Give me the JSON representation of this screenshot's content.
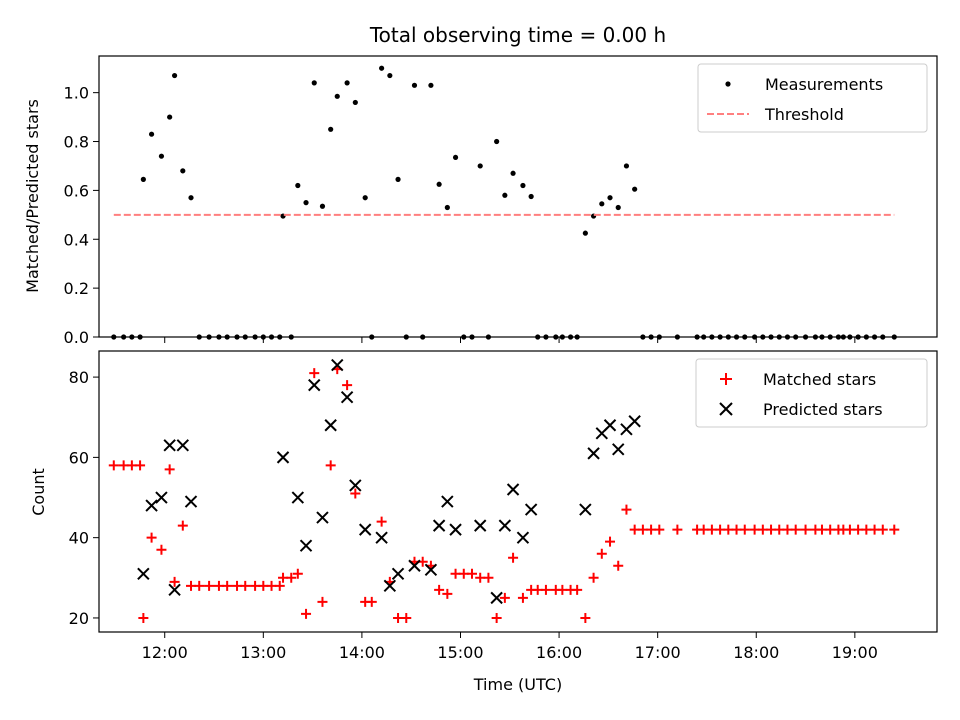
{
  "figure": {
    "title": "Total observing time = 0.00 h"
  },
  "colors": {
    "measurements": "#000000",
    "threshold": "#ff7f7f",
    "matched": "#ff0000",
    "predicted": "#000000",
    "axes": "#000000"
  },
  "chart_data": [
    {
      "type": "scatter",
      "title": "Total observing time = 0.00 h",
      "xlabel": "",
      "ylabel": "Matched/Predicted stars",
      "xlim": [
        "11:20",
        "19:50"
      ],
      "ylim": [
        0,
        1.15
      ],
      "yticks": [
        "0.0",
        "0.2",
        "0.4",
        "0.6",
        "0.8",
        "1.0"
      ],
      "ytick_values": [
        0,
        0.2,
        0.4,
        0.6,
        0.8,
        1.0
      ],
      "legend_position": "top-right",
      "grid": false,
      "series": [
        {
          "name": "Measurements",
          "marker": "dot",
          "points": [
            [
              "11:29",
              0
            ],
            [
              "11:35",
              0
            ],
            [
              "11:40",
              0
            ],
            [
              "11:45",
              0
            ],
            [
              "11:47",
              0.645
            ],
            [
              "11:52",
              0.83
            ],
            [
              "11:58",
              0.74
            ],
            [
              "12:03",
              0.9
            ],
            [
              "12:06",
              1.07
            ],
            [
              "12:11",
              0.68
            ],
            [
              "12:16",
              0.57
            ],
            [
              "12:21",
              0
            ],
            [
              "12:27",
              0
            ],
            [
              "12:33",
              0
            ],
            [
              "12:38",
              0
            ],
            [
              "12:44",
              0
            ],
            [
              "12:49",
              0
            ],
            [
              "12:55",
              0
            ],
            [
              "13:00",
              0
            ],
            [
              "13:05",
              0
            ],
            [
              "13:10",
              0
            ],
            [
              "13:12",
              0.495
            ],
            [
              "13:17",
              0
            ],
            [
              "13:21",
              0.62
            ],
            [
              "13:26",
              0.55
            ],
            [
              "13:31",
              1.04
            ],
            [
              "13:36",
              0.535
            ],
            [
              "13:41",
              0.85
            ],
            [
              "13:45",
              0.985
            ],
            [
              "13:51",
              1.04
            ],
            [
              "13:56",
              0.96
            ],
            [
              "14:02",
              0.57
            ],
            [
              "14:06",
              0
            ],
            [
              "14:12",
              1.1
            ],
            [
              "14:17",
              1.07
            ],
            [
              "14:22",
              0.645
            ],
            [
              "14:27",
              0
            ],
            [
              "14:32",
              1.03
            ],
            [
              "14:37",
              0
            ],
            [
              "14:42",
              1.03
            ],
            [
              "14:47",
              0.625
            ],
            [
              "14:52",
              0.53
            ],
            [
              "14:57",
              0.735
            ],
            [
              "15:02",
              0
            ],
            [
              "15:07",
              0
            ],
            [
              "15:12",
              0.7
            ],
            [
              "15:17",
              0
            ],
            [
              "15:22",
              0.8
            ],
            [
              "15:27",
              0.58
            ],
            [
              "15:32",
              0.67
            ],
            [
              "15:38",
              0.62
            ],
            [
              "15:43",
              0.575
            ],
            [
              "15:47",
              0
            ],
            [
              "15:52",
              0
            ],
            [
              "15:58",
              0
            ],
            [
              "16:02",
              0
            ],
            [
              "16:07",
              0
            ],
            [
              "16:11",
              0
            ],
            [
              "16:16",
              0.425
            ],
            [
              "16:21",
              0.495
            ],
            [
              "16:26",
              0.545
            ],
            [
              "16:31",
              0.57
            ],
            [
              "16:36",
              0.53
            ],
            [
              "16:41",
              0.7
            ],
            [
              "16:46",
              0.605
            ],
            [
              "16:51",
              0
            ],
            [
              "16:56",
              0
            ],
            [
              "17:01",
              0
            ],
            [
              "17:12",
              0
            ],
            [
              "17:24",
              0
            ],
            [
              "17:28",
              0
            ],
            [
              "17:33",
              0
            ],
            [
              "17:38",
              0
            ],
            [
              "17:43",
              0
            ],
            [
              "17:48",
              0
            ],
            [
              "17:53",
              0
            ],
            [
              "17:59",
              0
            ],
            [
              "18:04",
              0
            ],
            [
              "18:09",
              0
            ],
            [
              "18:14",
              0
            ],
            [
              "18:19",
              0
            ],
            [
              "18:24",
              0
            ],
            [
              "18:30",
              0
            ],
            [
              "18:36",
              0
            ],
            [
              "18:40",
              0
            ],
            [
              "18:45",
              0
            ],
            [
              "18:50",
              0
            ],
            [
              "18:53",
              0
            ],
            [
              "18:57",
              0
            ],
            [
              "19:02",
              0
            ],
            [
              "19:07",
              0
            ],
            [
              "19:12",
              0
            ],
            [
              "19:17",
              0
            ],
            [
              "19:24",
              0
            ]
          ]
        },
        {
          "name": "Threshold",
          "style": "dashed",
          "points": [
            [
              "11:29",
              0.5
            ],
            [
              "19:24",
              0.5
            ]
          ]
        }
      ]
    },
    {
      "type": "scatter",
      "title": "",
      "xlabel": "Time (UTC)",
      "ylabel": "Count",
      "xlim": [
        "11:20",
        "19:50"
      ],
      "ylim": [
        16.5,
        86.5
      ],
      "yticks": [
        "20",
        "40",
        "60",
        "80"
      ],
      "ytick_values": [
        20,
        40,
        60,
        80
      ],
      "xticks": [
        "12:00",
        "13:00",
        "14:00",
        "15:00",
        "16:00",
        "17:00",
        "18:00",
        "19:00"
      ],
      "legend_position": "top-right",
      "grid": false,
      "series": [
        {
          "name": "Matched stars",
          "marker": "plus",
          "points": [
            [
              "11:29",
              58
            ],
            [
              "11:35",
              58
            ],
            [
              "11:40",
              58
            ],
            [
              "11:45",
              58
            ],
            [
              "11:47",
              20
            ],
            [
              "11:52",
              40
            ],
            [
              "11:58",
              37
            ],
            [
              "12:03",
              57
            ],
            [
              "12:06",
              29
            ],
            [
              "12:11",
              43
            ],
            [
              "12:16",
              28
            ],
            [
              "12:21",
              28
            ],
            [
              "12:27",
              28
            ],
            [
              "12:33",
              28
            ],
            [
              "12:38",
              28
            ],
            [
              "12:44",
              28
            ],
            [
              "12:49",
              28
            ],
            [
              "12:55",
              28
            ],
            [
              "13:00",
              28
            ],
            [
              "13:05",
              28
            ],
            [
              "13:10",
              28
            ],
            [
              "13:12",
              30
            ],
            [
              "13:17",
              30
            ],
            [
              "13:21",
              31
            ],
            [
              "13:26",
              21
            ],
            [
              "13:31",
              81
            ],
            [
              "13:36",
              24
            ],
            [
              "13:41",
              58
            ],
            [
              "13:45",
              82
            ],
            [
              "13:51",
              78
            ],
            [
              "13:56",
              51
            ],
            [
              "14:02",
              24
            ],
            [
              "14:06",
              24
            ],
            [
              "14:12",
              44
            ],
            [
              "14:17",
              29
            ],
            [
              "14:22",
              20
            ],
            [
              "14:27",
              20
            ],
            [
              "14:32",
              34
            ],
            [
              "14:37",
              34
            ],
            [
              "14:42",
              33
            ],
            [
              "14:47",
              27
            ],
            [
              "14:52",
              26
            ],
            [
              "14:57",
              31
            ],
            [
              "15:02",
              31
            ],
            [
              "15:07",
              31
            ],
            [
              "15:12",
              30
            ],
            [
              "15:17",
              30
            ],
            [
              "15:22",
              20
            ],
            [
              "15:27",
              25
            ],
            [
              "15:32",
              35
            ],
            [
              "15:38",
              25
            ],
            [
              "15:43",
              27
            ],
            [
              "15:47",
              27
            ],
            [
              "15:52",
              27
            ],
            [
              "15:58",
              27
            ],
            [
              "16:02",
              27
            ],
            [
              "16:07",
              27
            ],
            [
              "16:11",
              27
            ],
            [
              "16:16",
              20
            ],
            [
              "16:21",
              30
            ],
            [
              "16:26",
              36
            ],
            [
              "16:31",
              39
            ],
            [
              "16:36",
              33
            ],
            [
              "16:41",
              47
            ],
            [
              "16:46",
              42
            ],
            [
              "16:51",
              42
            ],
            [
              "16:56",
              42
            ],
            [
              "17:01",
              42
            ],
            [
              "17:12",
              42
            ],
            [
              "17:24",
              42
            ],
            [
              "17:28",
              42
            ],
            [
              "17:33",
              42
            ],
            [
              "17:38",
              42
            ],
            [
              "17:43",
              42
            ],
            [
              "17:48",
              42
            ],
            [
              "17:53",
              42
            ],
            [
              "17:59",
              42
            ],
            [
              "18:04",
              42
            ],
            [
              "18:09",
              42
            ],
            [
              "18:14",
              42
            ],
            [
              "18:19",
              42
            ],
            [
              "18:24",
              42
            ],
            [
              "18:30",
              42
            ],
            [
              "18:36",
              42
            ],
            [
              "18:40",
              42
            ],
            [
              "18:45",
              42
            ],
            [
              "18:50",
              42
            ],
            [
              "18:53",
              42
            ],
            [
              "18:57",
              42
            ],
            [
              "19:02",
              42
            ],
            [
              "19:07",
              42
            ],
            [
              "19:12",
              42
            ],
            [
              "19:17",
              42
            ],
            [
              "19:24",
              42
            ]
          ]
        },
        {
          "name": "Predicted stars",
          "marker": "x",
          "points": [
            [
              "11:47",
              31
            ],
            [
              "11:52",
              48
            ],
            [
              "11:58",
              50
            ],
            [
              "12:03",
              63
            ],
            [
              "12:06",
              27
            ],
            [
              "12:11",
              63
            ],
            [
              "12:16",
              49
            ],
            [
              "13:12",
              60
            ],
            [
              "13:21",
              50
            ],
            [
              "13:26",
              38
            ],
            [
              "13:31",
              78
            ],
            [
              "13:36",
              45
            ],
            [
              "13:41",
              68
            ],
            [
              "13:45",
              83
            ],
            [
              "13:51",
              75
            ],
            [
              "13:56",
              53
            ],
            [
              "14:02",
              42
            ],
            [
              "14:12",
              40
            ],
            [
              "14:17",
              28
            ],
            [
              "14:22",
              31
            ],
            [
              "14:32",
              33
            ],
            [
              "14:42",
              32
            ],
            [
              "14:47",
              43
            ],
            [
              "14:52",
              49
            ],
            [
              "14:57",
              42
            ],
            [
              "15:12",
              43
            ],
            [
              "15:22",
              25
            ],
            [
              "15:27",
              43
            ],
            [
              "15:32",
              52
            ],
            [
              "15:38",
              40
            ],
            [
              "15:43",
              47
            ],
            [
              "16:16",
              47
            ],
            [
              "16:21",
              61
            ],
            [
              "16:26",
              66
            ],
            [
              "16:31",
              68
            ],
            [
              "16:36",
              62
            ],
            [
              "16:41",
              67
            ],
            [
              "16:46",
              69
            ]
          ]
        }
      ]
    }
  ]
}
